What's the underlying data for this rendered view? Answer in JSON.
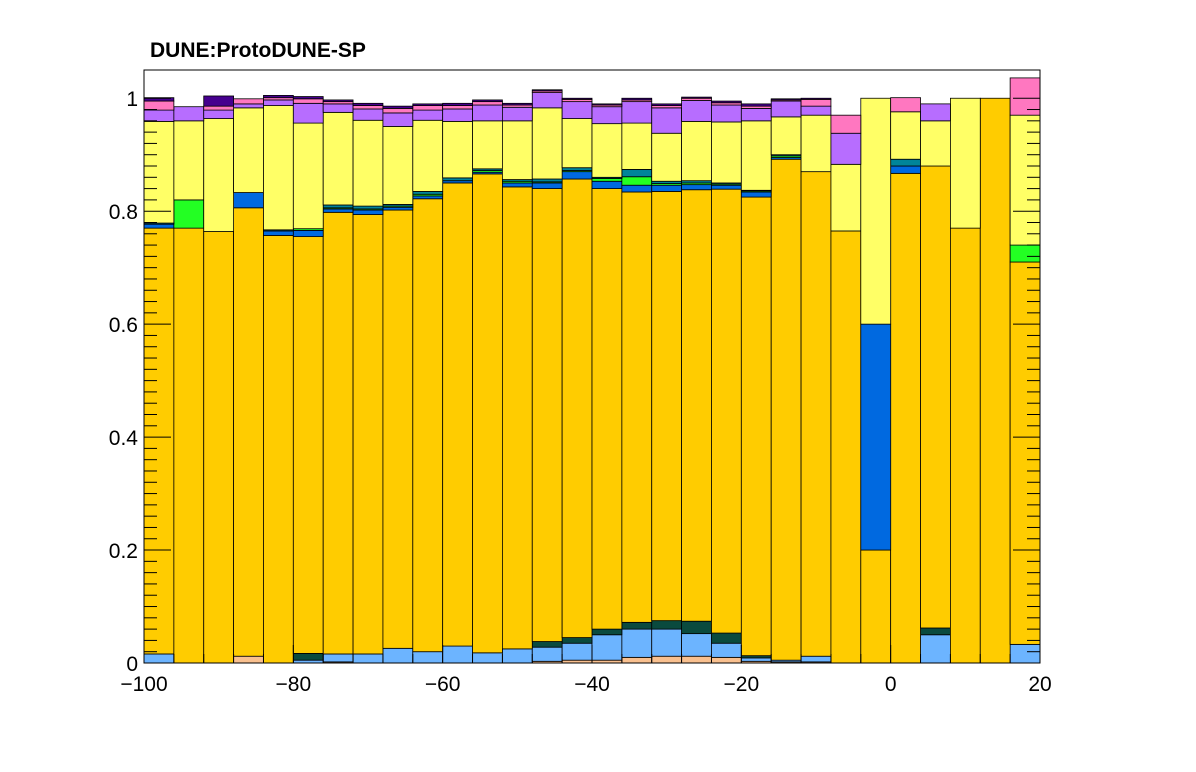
{
  "chart_data": {
    "type": "area",
    "title": "DUNE:ProtoDUNE-SP",
    "xlabel": "",
    "ylabel": "",
    "xlim": [
      -100,
      20
    ],
    "ylim": [
      0,
      1.05
    ],
    "grid": false,
    "stacked": true,
    "step": true,
    "xticks": [
      -100,
      -80,
      -60,
      -40,
      -20,
      0,
      20
    ],
    "xtick_labels": [
      "−100",
      "−80",
      "−60",
      "−40",
      "−20",
      "0",
      "20"
    ],
    "yticks": [
      0,
      0.2,
      0.4,
      0.6,
      0.8,
      1
    ],
    "ytick_labels": [
      "0",
      "0.2",
      "0.4",
      "0.6",
      "0.8",
      "1"
    ],
    "bin_edges": [
      -100,
      -96,
      -92,
      -88,
      -84,
      -80,
      -76,
      -72,
      -68,
      -64,
      -60,
      -56,
      -52,
      -48,
      -44,
      -40,
      -36,
      -32,
      -28,
      -24,
      -20,
      -16,
      -12,
      -8,
      -4,
      0,
      4,
      8,
      12,
      16,
      20
    ],
    "series": [
      {
        "color": "#f9c08f",
        "values": [
          0,
          0,
          0,
          0.012,
          0,
          0,
          0.002,
          0,
          0,
          0,
          0,
          0,
          0,
          0.003,
          0.005,
          0.005,
          0.01,
          0.012,
          0.012,
          0.01,
          0.003,
          0.002,
          0.002,
          0,
          0,
          0,
          0,
          0,
          0,
          0
        ]
      },
      {
        "color": "#6cb4ff",
        "values": [
          0.016,
          0,
          0,
          0,
          0,
          0.005,
          0.014,
          0.016,
          0.026,
          0.02,
          0.03,
          0.018,
          0.025,
          0.025,
          0.03,
          0.045,
          0.05,
          0.048,
          0.04,
          0.025,
          0.006,
          0.003,
          0.01,
          0,
          0,
          0,
          0.05,
          0,
          0,
          0.033
        ]
      },
      {
        "color": "#0a4a3e",
        "values": [
          0,
          0,
          0,
          0,
          0,
          0.012,
          0,
          0,
          0,
          0,
          0,
          0,
          0,
          0.01,
          0.01,
          0.01,
          0.012,
          0.015,
          0.022,
          0.018,
          0.004,
          0,
          0,
          0,
          0,
          0,
          0.012,
          0,
          0,
          0
        ]
      },
      {
        "color": "#ffcc00",
        "values": [
          0.754,
          0.77,
          0.764,
          0.794,
          0.757,
          0.738,
          0.782,
          0.778,
          0.776,
          0.802,
          0.82,
          0.848,
          0.818,
          0.802,
          0.812,
          0.78,
          0.762,
          0.76,
          0.764,
          0.786,
          0.812,
          0.887,
          0.858,
          0.765,
          0.2,
          0.867,
          0.818,
          0.77,
          1,
          0.677
        ]
      },
      {
        "color": "#0069e0",
        "values": [
          0.007,
          0,
          0,
          0.027,
          0.008,
          0.011,
          0.006,
          0.008,
          0.005,
          0.005,
          0.004,
          0.003,
          0.007,
          0.01,
          0.013,
          0.013,
          0.012,
          0.011,
          0.009,
          0.007,
          0.009,
          0.003,
          0,
          0,
          0.4,
          0.013,
          0,
          0,
          0,
          0
        ]
      },
      {
        "color": "#23ff23",
        "values": [
          0,
          0.05,
          0,
          0,
          0,
          0.003,
          0.002,
          0.002,
          0.002,
          0.003,
          0,
          0.003,
          0.003,
          0.002,
          0.002,
          0.005,
          0.015,
          0.003,
          0.003,
          0.002,
          0.002,
          0.003,
          0,
          0,
          0,
          0,
          0,
          0,
          0,
          0.03
        ]
      },
      {
        "color": "#00859a",
        "values": [
          0.002,
          0,
          0,
          0,
          0.002,
          0,
          0.005,
          0.005,
          0.003,
          0.005,
          0.005,
          0.003,
          0.003,
          0.005,
          0.005,
          0.002,
          0.013,
          0.004,
          0.004,
          0.002,
          0.001,
          0.002,
          0,
          0,
          0,
          0.012,
          0,
          0,
          0,
          0
        ]
      },
      {
        "color": "#ffff66",
        "values": [
          0.18,
          0.14,
          0.2,
          0.15,
          0.22,
          0.187,
          0.164,
          0.152,
          0.138,
          0.126,
          0.1,
          0.085,
          0.104,
          0.126,
          0.087,
          0.095,
          0.082,
          0.085,
          0.105,
          0.108,
          0.123,
          0.067,
          0.1,
          0.118,
          0.4,
          0.084,
          0.08,
          0.23,
          0,
          0.23
        ]
      },
      {
        "color": "#b76dff",
        "values": [
          0.02,
          0.025,
          0.015,
          0.007,
          0.01,
          0.035,
          0.015,
          0.02,
          0.024,
          0.018,
          0.022,
          0.028,
          0.024,
          0.027,
          0.03,
          0.03,
          0.038,
          0.045,
          0.037,
          0.03,
          0.022,
          0.028,
          0.016,
          0.055,
          0,
          0,
          0.03,
          0,
          0,
          0
        ]
      },
      {
        "color": "#ff77c0",
        "values": [
          0.016,
          0,
          0.007,
          0.009,
          0.004,
          0.008,
          0.004,
          0.006,
          0.008,
          0.008,
          0.006,
          0.006,
          0.004,
          0.003,
          0.004,
          0.003,
          0.003,
          0.004,
          0.004,
          0.004,
          0.004,
          0.002,
          0.012,
          0.032,
          0,
          0.025,
          0,
          0,
          0,
          0.066
        ]
      },
      {
        "color": "#46008e",
        "values": [
          0.006,
          0,
          0.018,
          0,
          0.004,
          0.004,
          0.003,
          0.004,
          0.004,
          0.003,
          0.004,
          0.003,
          0.003,
          0.002,
          0.002,
          0.002,
          0.003,
          0.003,
          0.002,
          0.003,
          0.004,
          0.002,
          0.002,
          0,
          0,
          0,
          0,
          0,
          0,
          0
        ]
      }
    ]
  }
}
